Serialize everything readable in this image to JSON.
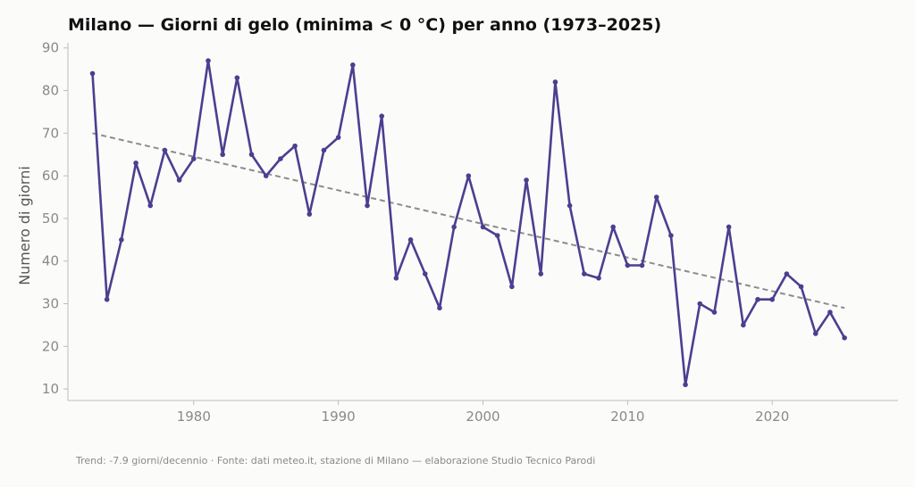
{
  "chart_data": {
    "type": "line",
    "title": "Milano — Giorni di gelo (minima < 0 °C) per anno (1973–2025)",
    "xlabel": "",
    "ylabel": "Numero di giorni",
    "xlim": [
      1971.3,
      2028.7
    ],
    "ylim": [
      7.3,
      91.2
    ],
    "xticks": [
      1980,
      1990,
      2000,
      2010,
      2020
    ],
    "yticks": [
      10,
      20,
      30,
      40,
      50,
      60,
      70,
      80,
      90
    ],
    "grid": false,
    "legend": "none",
    "x": [
      1973,
      1974,
      1975,
      1976,
      1977,
      1978,
      1979,
      1980,
      1981,
      1982,
      1983,
      1984,
      1985,
      1986,
      1987,
      1988,
      1989,
      1990,
      1991,
      1992,
      1993,
      1994,
      1995,
      1996,
      1997,
      1998,
      1999,
      2000,
      2001,
      2002,
      2003,
      2004,
      2005,
      2006,
      2007,
      2008,
      2009,
      2010,
      2011,
      2012,
      2013,
      2014,
      2015,
      2016,
      2017,
      2018,
      2019,
      2020,
      2021,
      2022,
      2023,
      2024,
      2025
    ],
    "series": [
      {
        "values": [
          84,
          31,
          45,
          63,
          53,
          66,
          59,
          64,
          87,
          65,
          83,
          65,
          60,
          64,
          67,
          51,
          66,
          69,
          86,
          53,
          74,
          36,
          45,
          37,
          29,
          48,
          60,
          48,
          46,
          34,
          59,
          37,
          82,
          53,
          37,
          36,
          48,
          39,
          39,
          55,
          46,
          11,
          30,
          28,
          48,
          25,
          31,
          31,
          37,
          34,
          23,
          28,
          22
        ],
        "color": "#4b3f8f"
      }
    ],
    "trend": {
      "x": [
        1973,
        2025
      ],
      "y": [
        70,
        29
      ],
      "color": "#8c8c8c",
      "style": "dashed"
    },
    "footnote": "Trend: -7.9 giorni/decennio · Fonte: dati meteo.it, stazione di Milano — elaborazione Studio Tecnico Parodi"
  }
}
